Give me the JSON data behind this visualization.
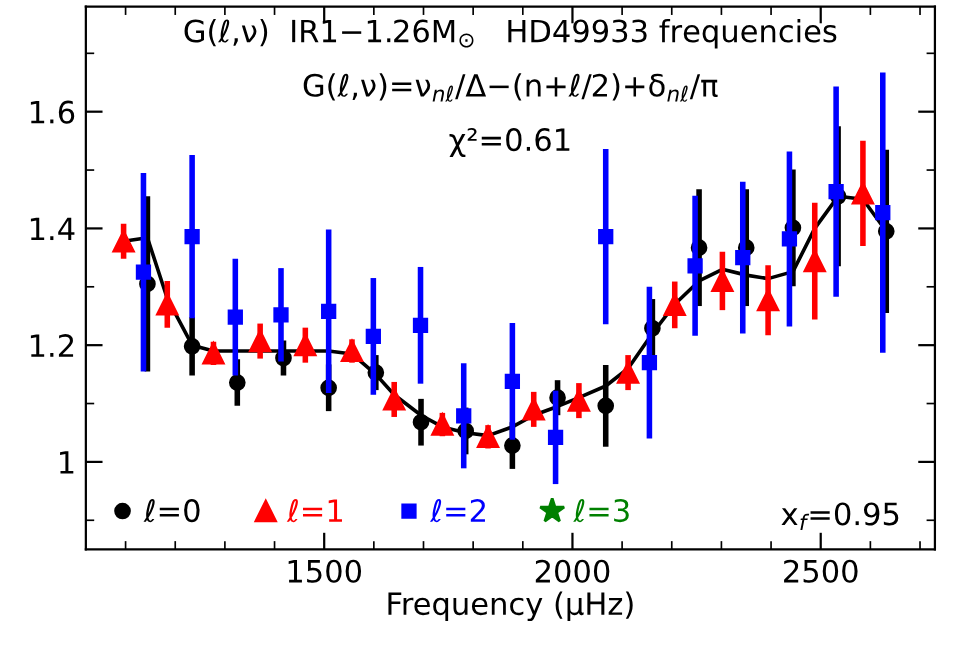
{
  "chart_data": {
    "type": "scatter",
    "annotations": [
      "G(ℓ,ν)  IR1−1.26M$_{⊙}$   HD49933 frequencies",
      "G(ℓ,ν)=ν$_{nℓ}$/Δ−(n+ℓ/2)+δ$_{nℓ}$/π",
      "χ²=0.61",
      "x$_{f}$=0.95"
    ],
    "xlabel": "Frequency (μHz)",
    "xlim": [
      1020,
      2730
    ],
    "xticks": [
      1500,
      2000,
      2500
    ],
    "ylim": [
      0.85,
      1.78
    ],
    "yticks": [
      {
        "value": 1,
        "label": "1"
      },
      1.2,
      1.4,
      1.6
    ],
    "legend": "bottom left",
    "grid": false,
    "series": [
      {
        "type": "line",
        "color": "#000000",
        "marker": "none",
        "line_style": "solid",
        "x": [
          1096,
          1144,
          1184,
          1234,
          1277,
          1371,
          1462,
          1509,
          1556,
          1604,
          1641,
          1695,
          1738,
          1785,
          1830,
          1879,
          1922,
          1970,
          2013,
          2067,
          2112,
          2161,
          2206,
          2255,
          2302,
          2350,
          2394,
          2444,
          2488,
          2535,
          2585,
          2632
        ],
        "values": [
          1.378,
          1.384,
          1.28,
          1.2,
          1.19,
          1.19,
          1.19,
          1.19,
          1.185,
          1.15,
          1.115,
          1.08,
          1.06,
          1.05,
          1.045,
          1.06,
          1.08,
          1.095,
          1.11,
          1.13,
          1.16,
          1.22,
          1.27,
          1.31,
          1.33,
          1.32,
          1.314,
          1.326,
          1.4,
          1.455,
          1.45,
          1.395
        ]
      },
      {
        "name": "ℓ=0",
        "marker": "circle",
        "color": "#000000",
        "x": [
          1144,
          1234,
          1325,
          1418,
          1509,
          1604,
          1695,
          1785,
          1879,
          1970,
          2067,
          2161,
          2255,
          2350,
          2444,
          2535,
          2632
        ],
        "values": [
          1.305,
          1.198,
          1.136,
          1.178,
          1.127,
          1.153,
          1.068,
          1.053,
          1.028,
          1.11,
          1.096,
          1.229,
          1.367,
          1.367,
          1.401,
          1.455,
          1.395
        ],
        "errors": [
          0.15,
          0.05,
          0.04,
          0.03,
          0.04,
          0.03,
          0.04,
          0.04,
          0.04,
          0.03,
          0.07,
          0.05,
          0.1,
          0.1,
          0.1,
          0.12,
          0.14
        ]
      },
      {
        "name": "ℓ=1",
        "marker": "triangle",
        "color": "#ff0000",
        "x": [
          1096,
          1184,
          1277,
          1371,
          1462,
          1556,
          1641,
          1738,
          1830,
          1922,
          2013,
          2112,
          2206,
          2302,
          2394,
          2488,
          2585
        ],
        "values": [
          1.378,
          1.27,
          1.186,
          1.207,
          1.2,
          1.19,
          1.107,
          1.064,
          1.043,
          1.09,
          1.105,
          1.153,
          1.269,
          1.31,
          1.277,
          1.344,
          1.46
        ],
        "errors": [
          0.03,
          0.04,
          0.02,
          0.03,
          0.03,
          0.02,
          0.03,
          0.02,
          0.02,
          0.03,
          0.03,
          0.03,
          0.04,
          0.05,
          0.06,
          0.1,
          0.09
        ]
      },
      {
        "name": "ℓ=2",
        "marker": "square",
        "color": "#0000ff",
        "x": [
          1136,
          1234,
          1321,
          1413,
          1509,
          1599,
          1694,
          1781,
          1879,
          1966,
          2067,
          2155,
          2247,
          2343,
          2437,
          2531,
          2625
        ],
        "values": [
          1.325,
          1.386,
          1.248,
          1.252,
          1.258,
          1.215,
          1.234,
          1.079,
          1.138,
          1.042,
          1.386,
          1.17,
          1.336,
          1.35,
          1.382,
          1.463,
          1.427
        ],
        "errors": [
          0.17,
          0.14,
          0.1,
          0.08,
          0.14,
          0.1,
          0.1,
          0.09,
          0.1,
          0.08,
          0.15,
          0.13,
          0.12,
          0.13,
          0.15,
          0.18,
          0.24
        ]
      },
      {
        "name": "ℓ=3",
        "marker": "star",
        "color": "#008000"
      }
    ]
  }
}
